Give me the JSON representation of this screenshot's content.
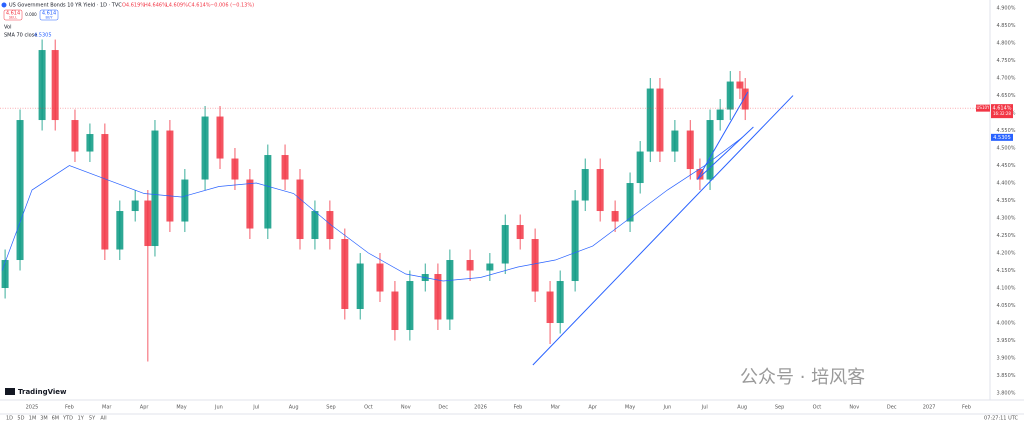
{
  "header": {
    "symbol": "US Government Bonds 10 YR Yield · 1D · TVC",
    "ohlc": [
      "O4.619%",
      "H4.646%",
      "L4.609%",
      "C4.614%"
    ],
    "change": "−0.006 (−0.13%)",
    "sell_price": "4.614",
    "sell": "SELL",
    "spread": "0.000",
    "buy_price": "4.614",
    "buy": "BUY",
    "vol": "Vol",
    "ma_label": "SMA 70 close",
    "ma_value": "4.5305"
  },
  "footer": {
    "ranges": [
      "1D",
      "5D",
      "1M",
      "3M",
      "6M",
      "YTD",
      "1Y",
      "5Y",
      "All"
    ],
    "clock": "07:27:11 UTC",
    "logo": "TradingView",
    "watermark": "公众号 · 培风客"
  },
  "chart_data": {
    "type": "candlestick",
    "grid": false,
    "up_color": "#089981",
    "down_color": "#f23645",
    "xlim": [
      -0.856,
      25.63
    ],
    "ylim": [
      3.78,
      4.923
    ],
    "xticks": [
      {
        "value": 0,
        "label": "2025"
      },
      {
        "value": 1,
        "label": "Feb"
      },
      {
        "value": 2,
        "label": "Mar"
      },
      {
        "value": 3,
        "label": "Apr"
      },
      {
        "value": 4,
        "label": "May"
      },
      {
        "value": 5,
        "label": "Jun"
      },
      {
        "value": 6,
        "label": "Jul"
      },
      {
        "value": 7,
        "label": "Aug"
      },
      {
        "value": 8,
        "label": "Sep"
      },
      {
        "value": 9,
        "label": "Oct"
      },
      {
        "value": 10,
        "label": "Nov"
      },
      {
        "value": 11,
        "label": "Dec"
      },
      {
        "value": 12,
        "label": "2026"
      },
      {
        "value": 13,
        "label": "Feb"
      },
      {
        "value": 14,
        "label": "Mar"
      },
      {
        "value": 15,
        "label": "Apr"
      },
      {
        "value": 16,
        "label": "May"
      },
      {
        "value": 17,
        "label": "Jun"
      },
      {
        "value": 18,
        "label": "Jul"
      },
      {
        "value": 19,
        "label": "Aug"
      },
      {
        "value": 20,
        "label": "Sep"
      },
      {
        "value": 21,
        "label": "Oct"
      },
      {
        "value": 22,
        "label": "Nov"
      },
      {
        "value": 23,
        "label": "Dec"
      },
      {
        "value": 24,
        "label": "2027"
      },
      {
        "value": 25,
        "label": "Feb"
      }
    ],
    "yticks": [
      {
        "value": 4.9,
        "label": "4.900%"
      },
      {
        "value": 4.85,
        "label": "4.850%"
      },
      {
        "value": 4.8,
        "label": "4.800%"
      },
      {
        "value": 4.75,
        "label": "4.750%"
      },
      {
        "value": 4.7,
        "label": "4.700%"
      },
      {
        "value": 4.65,
        "label": "4.650%"
      },
      {
        "value": 4.6,
        "label": "4.600%"
      },
      {
        "value": 4.55,
        "label": "4.550%"
      },
      {
        "value": 4.5,
        "label": "4.500%"
      },
      {
        "value": 4.45,
        "label": "4.450%"
      },
      {
        "value": 4.4,
        "label": "4.400%"
      },
      {
        "value": 4.35,
        "label": "4.350%"
      },
      {
        "value": 4.3,
        "label": "4.300%"
      },
      {
        "value": 4.25,
        "label": "4.250%"
      },
      {
        "value": 4.2,
        "label": "4.200%"
      },
      {
        "value": 4.15,
        "label": "4.150%"
      },
      {
        "value": 4.1,
        "label": "4.100%"
      },
      {
        "value": 4.05,
        "label": "4.050%"
      },
      {
        "value": 4.0,
        "label": "4.000%"
      },
      {
        "value": 3.95,
        "label": "3.950%"
      },
      {
        "value": 3.9,
        "label": "3.900%"
      },
      {
        "value": 3.85,
        "label": "3.850%"
      },
      {
        "value": 3.8,
        "label": "3.800%"
      }
    ],
    "candles": {
      "x": [
        -0.72,
        -0.32,
        0.27,
        0.62,
        1.15,
        1.55,
        1.95,
        2.35,
        2.76,
        3.1,
        3.29,
        3.69,
        4.09,
        4.63,
        5.03,
        5.43,
        5.83,
        6.31,
        6.77,
        7.17,
        7.57,
        7.97,
        8.37,
        8.78,
        9.31,
        9.71,
        10.11,
        10.52,
        10.86,
        11.18,
        11.72,
        12.25,
        12.66,
        13.06,
        13.46,
        13.86,
        14.13,
        14.53,
        14.8,
        15.2,
        15.6,
        16.0,
        16.27,
        16.54,
        16.8,
        17.2,
        17.61,
        17.87,
        18.14,
        18.41,
        18.68,
        18.94,
        19.08
      ],
      "open": [
        4.1,
        4.18,
        4.58,
        4.78,
        4.58,
        4.49,
        4.54,
        4.21,
        4.32,
        4.35,
        4.22,
        4.55,
        4.29,
        4.41,
        4.59,
        4.47,
        4.41,
        4.27,
        4.48,
        4.41,
        4.24,
        4.32,
        4.24,
        4.04,
        4.17,
        4.09,
        3.98,
        4.12,
        4.14,
        4.01,
        4.18,
        4.15,
        4.17,
        4.28,
        4.24,
        4.09,
        4.0,
        4.12,
        4.35,
        4.44,
        4.32,
        4.29,
        4.4,
        4.49,
        4.67,
        4.49,
        4.55,
        4.44,
        4.41,
        4.58,
        4.61,
        4.69,
        4.67
      ],
      "high": [
        4.21,
        4.61,
        4.81,
        4.81,
        4.61,
        4.57,
        4.57,
        4.35,
        4.38,
        4.38,
        4.58,
        4.58,
        4.44,
        4.62,
        4.62,
        4.5,
        4.44,
        4.51,
        4.51,
        4.44,
        4.35,
        4.35,
        4.27,
        4.2,
        4.2,
        4.12,
        4.15,
        4.17,
        4.17,
        4.21,
        4.21,
        4.2,
        4.31,
        4.31,
        4.27,
        4.12,
        4.15,
        4.38,
        4.47,
        4.47,
        4.35,
        4.43,
        4.52,
        4.7,
        4.7,
        4.58,
        4.58,
        4.47,
        4.61,
        4.64,
        4.72,
        4.72,
        4.7
      ],
      "low": [
        4.07,
        4.15,
        4.55,
        4.55,
        4.46,
        4.46,
        4.18,
        4.18,
        4.29,
        3.89,
        4.19,
        4.26,
        4.26,
        4.38,
        4.44,
        4.38,
        4.24,
        4.24,
        4.38,
        4.21,
        4.21,
        4.21,
        4.01,
        4.01,
        4.06,
        3.95,
        3.95,
        4.09,
        3.98,
        3.98,
        4.12,
        4.12,
        4.14,
        4.21,
        4.06,
        3.94,
        3.97,
        4.09,
        4.32,
        4.29,
        4.26,
        4.26,
        4.37,
        4.46,
        4.46,
        4.46,
        4.41,
        4.38,
        4.38,
        4.55,
        4.58,
        4.64,
        4.58
      ],
      "close": [
        4.18,
        4.58,
        4.78,
        4.58,
        4.49,
        4.54,
        4.21,
        4.32,
        4.35,
        4.22,
        4.55,
        4.29,
        4.41,
        4.59,
        4.47,
        4.41,
        4.27,
        4.48,
        4.41,
        4.24,
        4.32,
        4.24,
        4.04,
        4.17,
        4.09,
        3.98,
        4.12,
        4.14,
        4.01,
        4.18,
        4.15,
        4.17,
        4.28,
        4.24,
        4.09,
        4.0,
        4.12,
        4.35,
        4.44,
        4.32,
        4.29,
        4.4,
        4.49,
        4.67,
        4.49,
        4.55,
        4.44,
        4.41,
        4.58,
        4.61,
        4.69,
        4.67,
        4.61
      ]
    },
    "series": [
      {
        "name": "SMA 70 close",
        "color": "#2962ff",
        "x": [
          -0.8,
          0,
          1,
          2,
          3,
          4,
          5,
          6,
          7,
          8,
          9,
          10,
          11,
          12,
          13,
          14,
          15,
          16,
          17,
          18,
          19
        ],
        "values": [
          4.15,
          4.38,
          4.45,
          4.41,
          4.37,
          4.36,
          4.39,
          4.4,
          4.37,
          4.28,
          4.2,
          4.14,
          4.12,
          4.13,
          4.16,
          4.18,
          4.22,
          4.3,
          4.38,
          4.45,
          4.53
        ]
      }
    ],
    "trendlines": {
      "color": "#2962ff",
      "lines": [
        {
          "x": [
            13.4,
            20.36
          ],
          "values": [
            3.88,
            4.65
          ]
        },
        {
          "x": [
            17.8,
            19.15
          ],
          "values": [
            4.41,
            4.66
          ]
        },
        {
          "x": [
            17.8,
            19.3
          ],
          "values": [
            4.41,
            4.56
          ]
        }
      ]
    },
    "last_price": {
      "value": 4.614,
      "label": "4.614%"
    },
    "countdown": "16:32:28",
    "symbol_tag": "US10Y",
    "ma_price": {
      "value": 4.5305,
      "label": "4.5305"
    }
  }
}
